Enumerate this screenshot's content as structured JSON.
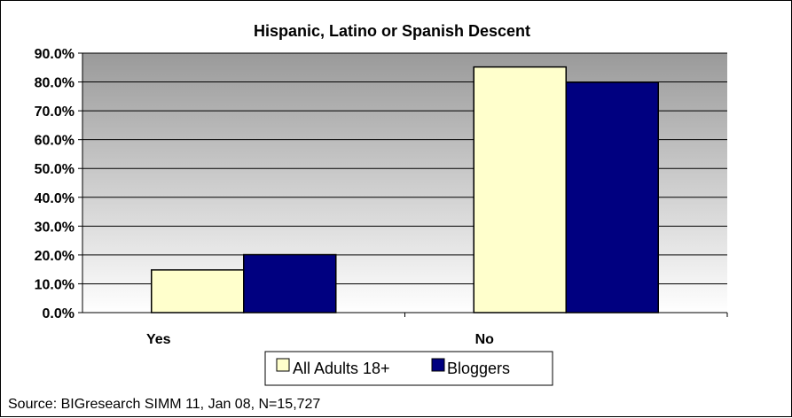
{
  "chart_data": {
    "type": "bar",
    "title": "Hispanic, Latino or Spanish Descent",
    "categories": [
      "Yes",
      "No"
    ],
    "series": [
      {
        "name": "All Adults 18+",
        "values": [
          14.8,
          85.2
        ],
        "color": "#FFFFCC"
      },
      {
        "name": "Bloggers",
        "values": [
          20.1,
          79.9
        ],
        "color": "#000080"
      }
    ],
    "ylim": [
      0,
      90
    ],
    "yticks": [
      "0.0%",
      "10.0%",
      "20.0%",
      "30.0%",
      "40.0%",
      "50.0%",
      "60.0%",
      "70.0%",
      "80.0%",
      "90.0%"
    ],
    "grid": true,
    "legend_position": "bottom",
    "plot_background": "gradient-gray"
  },
  "source_note": "Source: BIGresearch SIMM 11, Jan 08, N=15,727"
}
